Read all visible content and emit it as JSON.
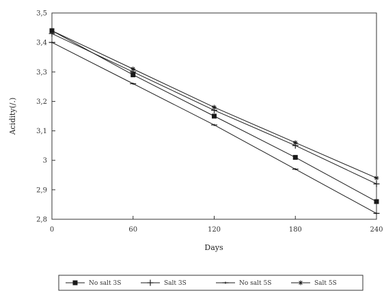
{
  "chart_data": {
    "type": "line",
    "title": "",
    "xlabel": "Days",
    "ylabel": "Acidity(/.)",
    "x": [
      0,
      60,
      120,
      180,
      240
    ],
    "x_tick_labels": [
      "0",
      "60",
      "120",
      "180",
      "240"
    ],
    "xlim": [
      0,
      240
    ],
    "y_ticks": [
      2.8,
      2.9,
      3.0,
      3.1,
      3.2,
      3.3,
      3.4,
      3.5
    ],
    "y_tick_labels": [
      "2,8",
      "2,9",
      "3",
      "3,1",
      "3,2",
      "3,3",
      "3,4",
      "3,5"
    ],
    "ylim": [
      2.8,
      3.5
    ],
    "grid": false,
    "legend_position": "bottom",
    "series": [
      {
        "name": "No salt 3S",
        "marker": "square",
        "values": [
          3.44,
          3.29,
          3.15,
          3.01,
          2.86
        ]
      },
      {
        "name": "Salt 3S",
        "marker": "plus",
        "values": [
          3.43,
          3.3,
          3.17,
          3.05,
          2.92
        ]
      },
      {
        "name": "No salt 5S",
        "marker": "dash",
        "values": [
          3.4,
          3.26,
          3.12,
          2.97,
          2.82
        ]
      },
      {
        "name": "Salt 5S",
        "marker": "asterisk",
        "values": [
          3.44,
          3.31,
          3.18,
          3.06,
          2.94
        ]
      }
    ],
    "colors": {
      "line": "#1a1a1a",
      "axis": "#333333",
      "background": "#ffffff"
    }
  }
}
